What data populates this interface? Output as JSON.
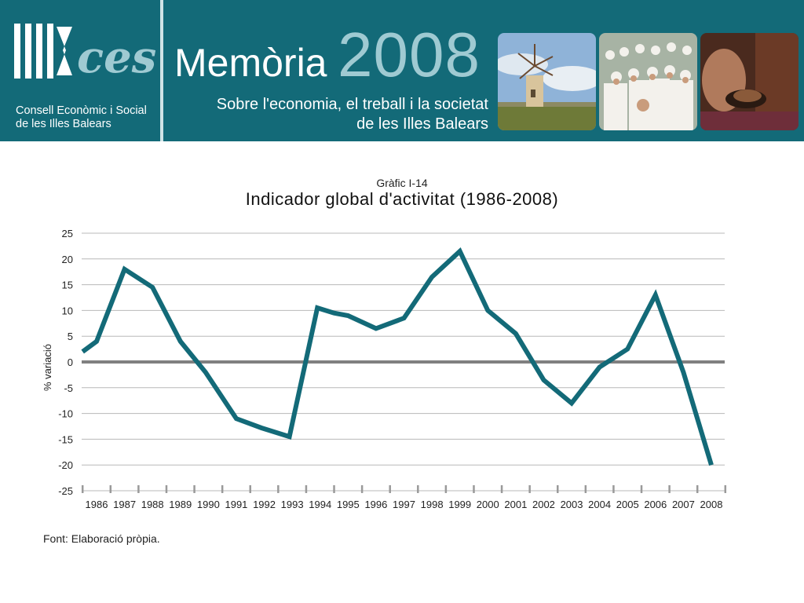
{
  "header": {
    "logo_icon": "ces-logo-icon",
    "org_line1": "Consell Econòmic i Social",
    "org_line2": "de les Illes Balears",
    "title": "Memòria",
    "year": "2008",
    "subtitle_line1": "Sobre l'economia, el treball i la societat",
    "subtitle_line2": "de les Illes Balears",
    "photos": [
      "windmill-photo",
      "group-photo",
      "craft-photo"
    ],
    "colors": {
      "header_bg": "#136a78",
      "year": "#9fcad2"
    }
  },
  "chart_data": {
    "type": "line",
    "kicker": "Gràfic I-14",
    "title": "Indicador global d'activitat (1986-2008)",
    "ylabel": "% variació",
    "xlabel": "",
    "ylim": [
      -25,
      25
    ],
    "yticks": [
      25,
      20,
      15,
      10,
      5,
      0,
      -5,
      -10,
      -15,
      -20,
      -25
    ],
    "categories": [
      "1986",
      "1987",
      "1988",
      "1989",
      "1990",
      "1991",
      "1992",
      "1993",
      "1994",
      "1995",
      "1996",
      "1997",
      "1998",
      "1999",
      "2000",
      "2001",
      "2002",
      "2003",
      "2004",
      "2005",
      "2006",
      "2007",
      "2008"
    ],
    "series": [
      {
        "color": "#136a78",
        "points": [
          {
            "x": 1985.5,
            "y": 2
          },
          {
            "x": 1986.0,
            "y": 4
          },
          {
            "x": 1987.0,
            "y": 18
          },
          {
            "x": 1988.0,
            "y": 14.5
          },
          {
            "x": 1989.0,
            "y": 4
          },
          {
            "x": 1989.9,
            "y": -2
          },
          {
            "x": 1991.0,
            "y": -11
          },
          {
            "x": 1991.9,
            "y": -12.8
          },
          {
            "x": 1992.9,
            "y": -14.5
          },
          {
            "x": 1993.9,
            "y": 10.5
          },
          {
            "x": 1994.5,
            "y": 9.5
          },
          {
            "x": 1995.0,
            "y": 9
          },
          {
            "x": 1996.0,
            "y": 6.5
          },
          {
            "x": 1997.0,
            "y": 8.5
          },
          {
            "x": 1998.0,
            "y": 16.5
          },
          {
            "x": 1999.0,
            "y": 21.5
          },
          {
            "x": 2000.0,
            "y": 10
          },
          {
            "x": 2001.0,
            "y": 5.5
          },
          {
            "x": 2002.0,
            "y": -3.5
          },
          {
            "x": 2003.0,
            "y": -8
          },
          {
            "x": 2004.0,
            "y": -1
          },
          {
            "x": 2005.0,
            "y": 2.5
          },
          {
            "x": 2006.0,
            "y": 13
          },
          {
            "x": 2007.0,
            "y": -2
          },
          {
            "x": 2008.0,
            "y": -20
          }
        ]
      }
    ],
    "grid": true
  },
  "footer": {
    "source": "Font: Elaboració pròpia."
  }
}
